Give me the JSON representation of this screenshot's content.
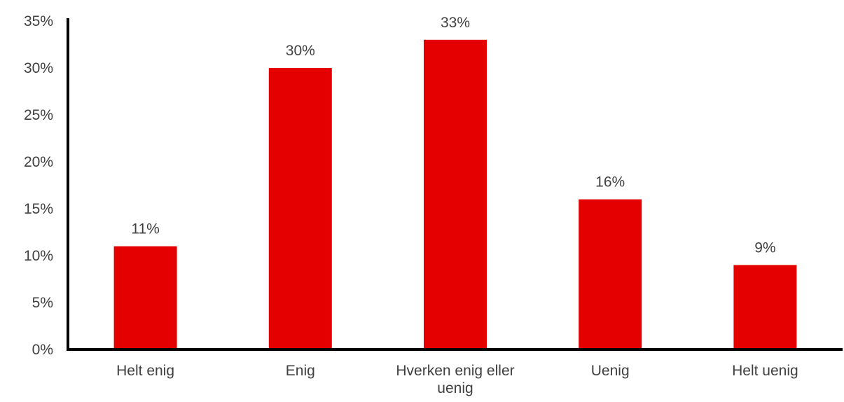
{
  "chart_data": {
    "type": "bar",
    "categories": [
      [
        "Helt enig"
      ],
      [
        "Enig"
      ],
      [
        "Hverken enig eller",
        "uenig"
      ],
      [
        "Uenig"
      ],
      [
        "Helt uenig"
      ]
    ],
    "values": [
      11,
      30,
      33,
      16,
      9
    ],
    "value_labels": [
      "11%",
      "30%",
      "33%",
      "16%",
      "9%"
    ],
    "ylim": [
      0,
      35
    ],
    "yticks": [
      0,
      5,
      10,
      15,
      20,
      25,
      30,
      35
    ],
    "ytick_labels": [
      "0%",
      "5%",
      "10%",
      "15%",
      "20%",
      "25%",
      "30%",
      "35%"
    ],
    "title": "",
    "xlabel": "",
    "ylabel": "",
    "grid": false,
    "legend": "none",
    "colors": {
      "bar": "#e50000",
      "axis": "#000000",
      "text": "#404040"
    }
  }
}
